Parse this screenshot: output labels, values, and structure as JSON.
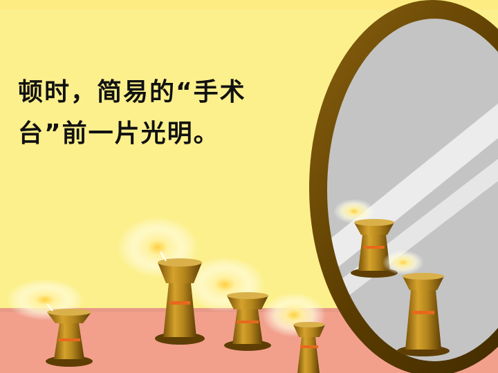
{
  "slide": {
    "caption_line_1": "顿时，简易的“手术",
    "caption_line_2": "台”前一片光明。"
  },
  "colors": {
    "background": "#fcf08c",
    "floor": "#f2a08c",
    "mirror_frame": "#6b4a00",
    "mirror_glass": "#c4c4c4",
    "candle_brass": "#b3841c",
    "candle_band": "#e8681c",
    "glow": "#fffbd0"
  }
}
